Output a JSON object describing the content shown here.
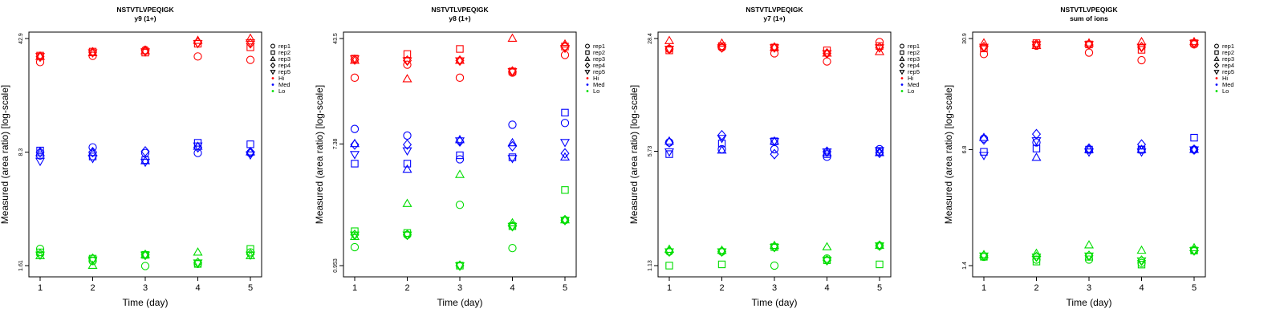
{
  "legend": {
    "shapes": [
      {
        "label": "rep1",
        "marker": "circle"
      },
      {
        "label": "rep2",
        "marker": "square"
      },
      {
        "label": "rep3",
        "marker": "triangle-up"
      },
      {
        "label": "rep4",
        "marker": "diamond"
      },
      {
        "label": "rep5",
        "marker": "triangle-down"
      }
    ],
    "colors": [
      {
        "label": "Hi",
        "color": "#ff0000"
      },
      {
        "label": "Med",
        "color": "#0000ff"
      },
      {
        "label": "Lo",
        "color": "#00dd00"
      }
    ]
  },
  "chart_data": [
    {
      "type": "scatter",
      "title": "NSTVTLVPEQIGK",
      "subtitle": "y9 (1+)",
      "xlabel": "Time (day)",
      "ylabel": "Measured (area ratio) [log-scale]",
      "x_ticks": [
        1,
        2,
        3,
        4,
        5
      ],
      "y_ticks": [
        1.61,
        8.3,
        42.9
      ],
      "y_scale": "log",
      "ylim": [
        1.61,
        42.9
      ],
      "groups": [
        {
          "level": "Hi",
          "color": "#ff0000",
          "reps": [
            {
              "rep": "rep1",
              "values": [
                30.5,
                33.4,
                36.3,
                33.1,
                31.5
              ]
            },
            {
              "rep": "rep2",
              "values": [
                33.5,
                35.5,
                35.0,
                39.8,
                37.8
              ]
            },
            {
              "rep": "rep3",
              "values": [
                33.0,
                34.8,
                35.8,
                41.6,
                42.9
              ]
            },
            {
              "rep": "rep4",
              "values": [
                33.0,
                35.2,
                36.0,
                40.5,
                40.0
              ]
            },
            {
              "rep": "rep5",
              "values": [
                33.2,
                35.0,
                35.5,
                40.0,
                40.5
              ]
            }
          ]
        },
        {
          "level": "Med",
          "color": "#0000ff",
          "reps": [
            {
              "rep": "rep1",
              "values": [
                7.9,
                8.9,
                8.2,
                8.2,
                8.2
              ]
            },
            {
              "rep": "rep2",
              "values": [
                8.5,
                7.8,
                7.4,
                9.5,
                9.3
              ]
            },
            {
              "rep": "rep3",
              "values": [
                8.2,
                8.2,
                7.3,
                9.0,
                8.3
              ]
            },
            {
              "rep": "rep4",
              "values": [
                8.3,
                8.3,
                8.4,
                8.9,
                8.3
              ]
            },
            {
              "rep": "rep5",
              "values": [
                7.3,
                7.6,
                7.2,
                9.1,
                8.0
              ]
            }
          ]
        },
        {
          "level": "Lo",
          "color": "#00dd00",
          "reps": [
            {
              "rep": "rep1",
              "values": [
                2.05,
                1.72,
                1.6,
                1.65,
                1.95
              ]
            },
            {
              "rep": "rep2",
              "values": [
                1.95,
                1.78,
                1.88,
                1.65,
                2.05
              ]
            },
            {
              "rep": "rep3",
              "values": [
                1.85,
                1.61,
                1.88,
                1.95,
                1.85
              ]
            },
            {
              "rep": "rep4",
              "values": [
                1.9,
                1.78,
                1.88,
                1.68,
                1.9
              ]
            },
            {
              "rep": "rep5",
              "values": [
                1.88,
                1.75,
                1.88,
                1.68,
                1.88
              ]
            }
          ]
        }
      ]
    },
    {
      "type": "scatter",
      "title": "NSTVTLVPEQIGK",
      "subtitle": "y8 (1+)",
      "xlabel": "Time (day)",
      "ylabel": "Measured (area ratio) [log-scale]",
      "x_ticks": [
        1,
        2,
        3,
        4,
        5
      ],
      "y_ticks": [
        0.953,
        7.38,
        43.5
      ],
      "y_scale": "log",
      "ylim": [
        0.953,
        43.5
      ],
      "groups": [
        {
          "level": "Hi",
          "color": "#ff0000",
          "reps": [
            {
              "rep": "rep1",
              "values": [
                22.5,
                28.0,
                22.5,
                24.5,
                33.0
              ]
            },
            {
              "rep": "rep2",
              "values": [
                31.0,
                33.5,
                36.5,
                25.0,
                38.0
              ]
            },
            {
              "rep": "rep3",
              "values": [
                30.0,
                22.0,
                30.0,
                43.5,
                39.5
              ]
            },
            {
              "rep": "rep4",
              "values": [
                30.5,
                30.0,
                30.0,
                25.0,
                38.0
              ]
            },
            {
              "rep": "rep5",
              "values": [
                31.0,
                30.0,
                30.0,
                25.0,
                37.0
              ]
            }
          ]
        },
        {
          "level": "Med",
          "color": "#0000ff",
          "reps": [
            {
              "rep": "rep1",
              "values": [
                9.5,
                8.5,
                5.7,
                10.2,
                10.5
              ]
            },
            {
              "rep": "rep2",
              "values": [
                5.3,
                5.3,
                6.1,
                5.9,
                12.5
              ]
            },
            {
              "rep": "rep3",
              "values": [
                7.4,
                4.8,
                7.9,
                7.5,
                5.9
              ]
            },
            {
              "rep": "rep4",
              "values": [
                7.3,
                7.3,
                7.7,
                7.1,
                6.3
              ]
            },
            {
              "rep": "rep5",
              "values": [
                6.2,
                6.6,
                7.8,
                5.8,
                7.6
              ]
            }
          ]
        },
        {
          "level": "Lo",
          "color": "#00dd00",
          "reps": [
            {
              "rep": "rep1",
              "values": [
                1.3,
                1.6,
                2.65,
                1.28,
                2.05
              ]
            },
            {
              "rep": "rep2",
              "values": [
                1.7,
                1.65,
                0.953,
                1.85,
                3.4
              ]
            },
            {
              "rep": "rep3",
              "values": [
                1.55,
                2.7,
                4.4,
                1.95,
                2.05
              ]
            },
            {
              "rep": "rep4",
              "values": [
                1.6,
                1.6,
                0.953,
                1.85,
                2.05
              ]
            },
            {
              "rep": "rep5",
              "values": [
                1.6,
                1.6,
                0.953,
                1.85,
                2.05
              ]
            }
          ]
        }
      ]
    },
    {
      "type": "scatter",
      "title": "NSTVTLVPEQIGK",
      "subtitle": "y7 (1+)",
      "xlabel": "Time (day)",
      "ylabel": "Measured (area ratio) [log-scale]",
      "x_ticks": [
        1,
        2,
        3,
        4,
        5
      ],
      "y_ticks": [
        1.13,
        5.73,
        28.4
      ],
      "y_scale": "log",
      "ylim": [
        1.13,
        28.4
      ],
      "groups": [
        {
          "level": "Hi",
          "color": "#ff0000",
          "reps": [
            {
              "rep": "rep1",
              "values": [
                24.5,
                25.0,
                23.0,
                20.5,
                27.0
              ]
            },
            {
              "rep": "rep2",
              "values": [
                24.0,
                25.5,
                25.0,
                24.0,
                25.5
              ]
            },
            {
              "rep": "rep3",
              "values": [
                27.5,
                26.5,
                25.0,
                23.0,
                23.5
              ]
            },
            {
              "rep": "rep4",
              "values": [
                24.5,
                25.0,
                25.0,
                23.0,
                25.0
              ]
            },
            {
              "rep": "rep5",
              "values": [
                24.5,
                25.0,
                25.0,
                23.0,
                25.0
              ]
            }
          ]
        },
        {
          "level": "Med",
          "color": "#0000ff",
          "reps": [
            {
              "rep": "rep1",
              "values": [
                6.5,
                5.9,
                5.9,
                5.3,
                5.9
              ]
            },
            {
              "rep": "rep2",
              "values": [
                5.5,
                6.4,
                6.6,
                5.5,
                5.7
              ]
            },
            {
              "rep": "rep3",
              "values": [
                6.6,
                5.8,
                6.6,
                5.6,
                5.6
              ]
            },
            {
              "rep": "rep4",
              "values": [
                6.5,
                7.2,
                5.5,
                5.7,
                5.6
              ]
            },
            {
              "rep": "rep5",
              "values": [
                5.7,
                6.9,
                6.6,
                5.7,
                5.8
              ]
            }
          ]
        },
        {
          "level": "Lo",
          "color": "#00dd00",
          "reps": [
            {
              "rep": "rep1",
              "values": [
                1.38,
                1.38,
                1.13,
                1.25,
                1.5
              ]
            },
            {
              "rep": "rep2",
              "values": [
                1.13,
                1.15,
                1.47,
                1.22,
                1.15
              ]
            },
            {
              "rep": "rep3",
              "values": [
                1.42,
                1.4,
                1.5,
                1.47,
                1.5
              ]
            },
            {
              "rep": "rep4",
              "values": [
                1.38,
                1.38,
                1.47,
                1.22,
                1.5
              ]
            },
            {
              "rep": "rep5",
              "values": [
                1.38,
                1.38,
                1.47,
                1.22,
                1.5
              ]
            }
          ]
        }
      ]
    },
    {
      "type": "scatter",
      "title": "NSTVTLVPEQIGK",
      "subtitle": "sum of ions",
      "xlabel": "Time (day)",
      "ylabel": "Measured (area ratio) [log-scale]",
      "x_ticks": [
        1,
        2,
        3,
        4,
        5
      ],
      "y_ticks": [
        1.4,
        6.8,
        30.9
      ],
      "y_scale": "log",
      "ylim": [
        1.4,
        30.9
      ],
      "groups": [
        {
          "level": "Hi",
          "color": "#ff0000",
          "reps": [
            {
              "rep": "rep1",
              "values": [
                25.0,
                28.0,
                25.5,
                23.0,
                28.5
              ]
            },
            {
              "rep": "rep2",
              "values": [
                27.0,
                29.0,
                28.5,
                26.5,
                29.0
              ]
            },
            {
              "rep": "rep3",
              "values": [
                29.0,
                28.0,
                29.0,
                29.5,
                29.5
              ]
            },
            {
              "rep": "rep4",
              "values": [
                27.5,
                28.5,
                28.5,
                27.5,
                29.0
              ]
            },
            {
              "rep": "rep5",
              "values": [
                27.5,
                28.5,
                28.5,
                27.5,
                29.0
              ]
            }
          ]
        },
        {
          "level": "Med",
          "color": "#0000ff",
          "reps": [
            {
              "rep": "rep1",
              "values": [
                7.9,
                7.5,
                6.8,
                6.8,
                6.8
              ]
            },
            {
              "rep": "rep2",
              "values": [
                6.6,
                6.9,
                6.8,
                6.8,
                8.0
              ]
            },
            {
              "rep": "rep3",
              "values": [
                8.0,
                6.1,
                6.8,
                6.8,
                6.8
              ]
            },
            {
              "rep": "rep4",
              "values": [
                7.8,
                8.4,
                6.9,
                7.3,
                6.8
              ]
            },
            {
              "rep": "rep5",
              "values": [
                6.3,
                7.7,
                6.6,
                6.6,
                6.8
              ]
            }
          ]
        },
        {
          "level": "Lo",
          "color": "#00dd00",
          "reps": [
            {
              "rep": "rep1",
              "values": [
                1.58,
                1.52,
                1.52,
                1.45,
                1.72
              ]
            },
            {
              "rep": "rep2",
              "values": [
                1.58,
                1.48,
                1.58,
                1.42,
                1.72
              ]
            },
            {
              "rep": "rep3",
              "values": [
                1.62,
                1.65,
                1.85,
                1.72,
                1.78
              ]
            },
            {
              "rep": "rep4",
              "values": [
                1.6,
                1.58,
                1.6,
                1.5,
                1.72
              ]
            },
            {
              "rep": "rep5",
              "values": [
                1.6,
                1.58,
                1.6,
                1.5,
                1.72
              ]
            }
          ]
        }
      ]
    }
  ]
}
